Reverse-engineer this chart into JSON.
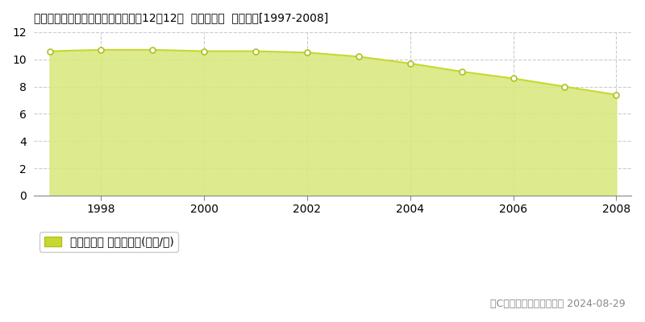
{
  "title": "宮城県仙台市泉区七北田字大沢木户12畤12外  基準地価格  地価推移[1997-2008]",
  "years": [
    1997,
    1998,
    1999,
    2000,
    2001,
    2002,
    2003,
    2004,
    2005,
    2006,
    2007,
    2008
  ],
  "values": [
    10.6,
    10.7,
    10.7,
    10.6,
    10.6,
    10.5,
    10.2,
    9.7,
    9.1,
    8.6,
    8.0,
    7.4
  ],
  "ylim": [
    0,
    12
  ],
  "yticks": [
    0,
    2,
    4,
    6,
    8,
    10,
    12
  ],
  "line_color": "#c8d832",
  "fill_color": "#d8e87a",
  "fill_alpha": 0.85,
  "marker_color": "white",
  "marker_edge_color": "#b0c020",
  "bg_color": "#ffffff",
  "plot_bg_color": "#ffffff",
  "grid_color": "#cccccc",
  "legend_label": "基準地価格 平均坪単価(万円/坪)",
  "legend_marker_color": "#c8d832",
  "copyright_text": "（C）土地価格ドットコム 2024-08-29",
  "title_fontsize": 13,
  "axis_fontsize": 10,
  "legend_fontsize": 10,
  "copyright_fontsize": 9
}
